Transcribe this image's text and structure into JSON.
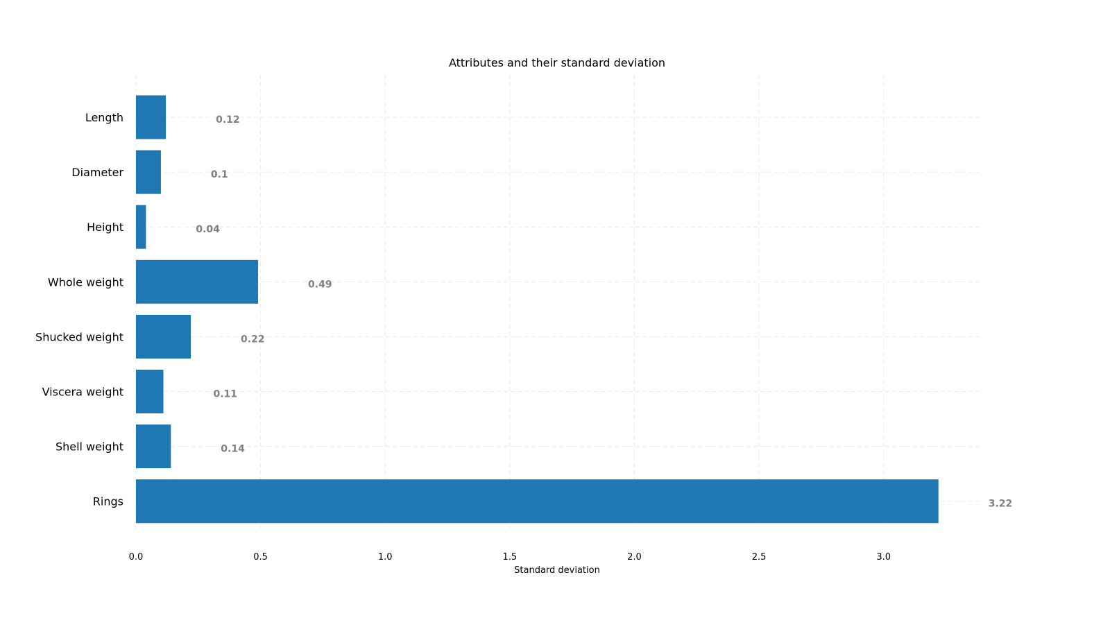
{
  "chart_data": {
    "type": "bar",
    "orientation": "horizontal",
    "title": "Attributes and their standard deviation",
    "xlabel": "Standard deviation",
    "ylabel": "",
    "categories": [
      "Length",
      "Diameter",
      "Height",
      "Whole weight",
      "Shucked weight",
      "Viscera weight",
      "Shell weight",
      "Rings"
    ],
    "values": [
      0.12,
      0.1,
      0.04,
      0.49,
      0.22,
      0.11,
      0.14,
      3.22
    ],
    "value_labels": [
      "0.12",
      "0.1",
      "0.04",
      "0.49",
      "0.22",
      "0.11",
      "0.14",
      "3.22"
    ],
    "xticks": [
      0.0,
      0.5,
      1.0,
      1.5,
      2.0,
      2.5,
      3.0
    ],
    "xtick_labels": [
      "0.0",
      "0.5",
      "1.0",
      "1.5",
      "2.0",
      "2.5",
      "3.0"
    ],
    "xlim": [
      0,
      3.385
    ],
    "grid": true,
    "legend": "none",
    "colors": {
      "bar": "#1f77b4",
      "value_label": "#808080",
      "grid": "#dcdcdc"
    }
  }
}
